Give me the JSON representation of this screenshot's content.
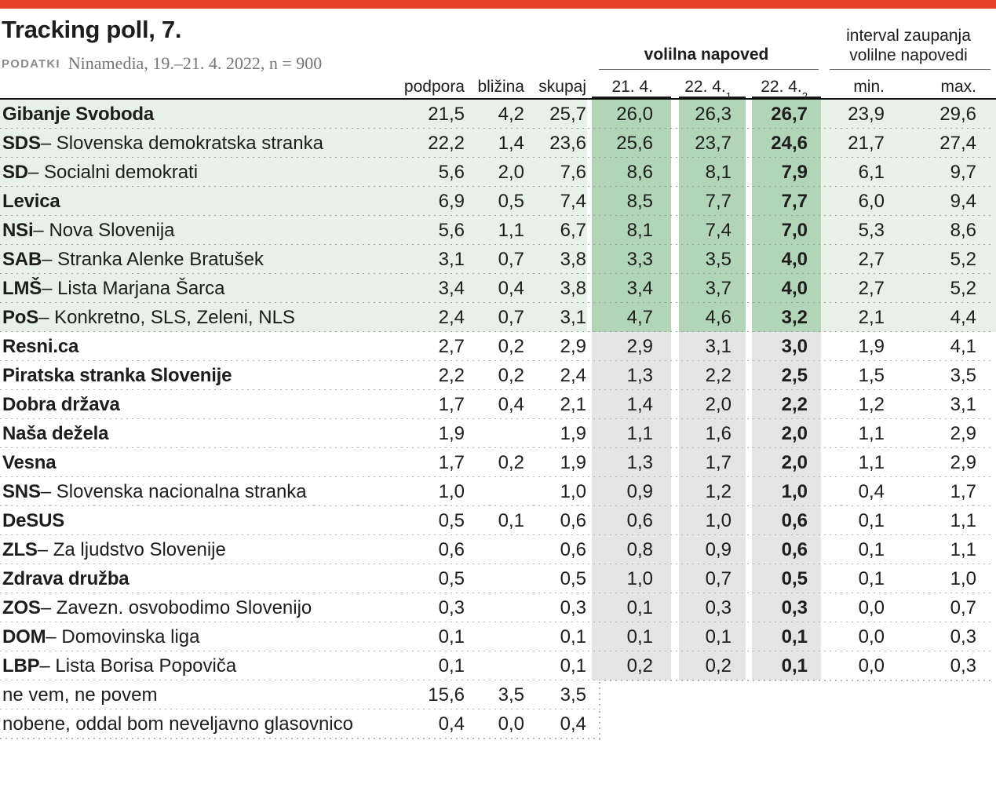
{
  "page": {
    "accent_red": "#e9402a",
    "title": "Tracking poll, 7.",
    "source_label": "PODATKI",
    "source_text": "Ninamedia, 19.–21. 4. 2022, n = 900"
  },
  "chart_data": {
    "type": "table",
    "title": "Tracking poll, 7.",
    "source": "Ninamedia, 19.–21. 4. 2022, n = 900",
    "group_headers": {
      "napoved": "volilna napoved",
      "interval_line1": "interval zaupanja",
      "interval_line2": "volilne napovedi"
    },
    "columns": [
      {
        "label": "podpora",
        "sup": ""
      },
      {
        "label": "bližina",
        "sup": ""
      },
      {
        "label": "skupaj",
        "sup": ""
      },
      {
        "label": "21. 4.",
        "sup": ""
      },
      {
        "label": "22. 4.",
        "sup": "1"
      },
      {
        "label": "22. 4.",
        "sup": "2"
      },
      {
        "label": "min.",
        "sup": ""
      },
      {
        "label": "max.",
        "sup": ""
      }
    ],
    "colors": {
      "row_green": "#e7f1e8",
      "band_green": "#b1d5b6",
      "band_gray": "#e4e4e4"
    },
    "rows": [
      {
        "party": "Gibanje Svoboda",
        "desc": "",
        "section": "green",
        "values": [
          "21,5",
          "4,2",
          "25,7",
          "26,0",
          "26,3",
          "26,7",
          "23,9",
          "29,6"
        ]
      },
      {
        "party": "SDS",
        "desc": "Slovenska demokratska stranka",
        "section": "green",
        "values": [
          "22,2",
          "1,4",
          "23,6",
          "25,6",
          "23,7",
          "24,6",
          "21,7",
          "27,4"
        ]
      },
      {
        "party": "SD",
        "desc": "Socialni demokrati",
        "section": "green",
        "values": [
          "5,6",
          "2,0",
          "7,6",
          "8,6",
          "8,1",
          "7,9",
          "6,1",
          "9,7"
        ]
      },
      {
        "party": "Levica",
        "desc": "",
        "section": "green",
        "values": [
          "6,9",
          "0,5",
          "7,4",
          "8,5",
          "7,7",
          "7,7",
          "6,0",
          "9,4"
        ]
      },
      {
        "party": "NSi",
        "desc": "Nova Slovenija",
        "section": "green",
        "values": [
          "5,6",
          "1,1",
          "6,7",
          "8,1",
          "7,4",
          "7,0",
          "5,3",
          "8,6"
        ]
      },
      {
        "party": "SAB",
        "desc": "Stranka Alenke Bratušek",
        "section": "green",
        "values": [
          "3,1",
          "0,7",
          "3,8",
          "3,3",
          "3,5",
          "4,0",
          "2,7",
          "5,2"
        ]
      },
      {
        "party": "LMŠ",
        "desc": "Lista Marjana Šarca",
        "section": "green",
        "values": [
          "3,4",
          "0,4",
          "3,8",
          "3,4",
          "3,7",
          "4,0",
          "2,7",
          "5,2"
        ]
      },
      {
        "party": "PoS",
        "desc": "Konkretno, SLS, Zeleni, NLS",
        "section": "green",
        "values": [
          "2,4",
          "0,7",
          "3,1",
          "4,7",
          "4,6",
          "3,2",
          "2,1",
          "4,4"
        ]
      },
      {
        "party": "Resni.ca",
        "desc": "",
        "section": "white",
        "values": [
          "2,7",
          "0,2",
          "2,9",
          "2,9",
          "3,1",
          "3,0",
          "1,9",
          "4,1"
        ]
      },
      {
        "party": "Piratska stranka Slovenije",
        "desc": "",
        "section": "white",
        "values": [
          "2,2",
          "0,2",
          "2,4",
          "1,3",
          "2,2",
          "2,5",
          "1,5",
          "3,5"
        ]
      },
      {
        "party": "Dobra država",
        "desc": "",
        "section": "white",
        "values": [
          "1,7",
          "0,4",
          "2,1",
          "1,4",
          "2,0",
          "2,2",
          "1,2",
          "3,1"
        ]
      },
      {
        "party": "Naša dežela",
        "desc": "",
        "section": "white",
        "values": [
          "1,9",
          "",
          "1,9",
          "1,1",
          "1,6",
          "2,0",
          "1,1",
          "2,9"
        ]
      },
      {
        "party": "Vesna",
        "desc": "",
        "section": "white",
        "values": [
          "1,7",
          "0,2",
          "1,9",
          "1,3",
          "1,7",
          "2,0",
          "1,1",
          "2,9"
        ]
      },
      {
        "party": "SNS",
        "desc": "Slovenska nacionalna stranka",
        "section": "white",
        "values": [
          "1,0",
          "",
          "1,0",
          "0,9",
          "1,2",
          "1,0",
          "0,4",
          "1,7"
        ]
      },
      {
        "party": "DeSUS",
        "desc": "",
        "section": "white",
        "values": [
          "0,5",
          "0,1",
          "0,6",
          "0,6",
          "1,0",
          "0,6",
          "0,1",
          "1,1"
        ]
      },
      {
        "party": "ZLS",
        "desc": "Za ljudstvo Slovenije",
        "section": "white",
        "values": [
          "0,6",
          "",
          "0,6",
          "0,8",
          "0,9",
          "0,6",
          "0,1",
          "1,1"
        ]
      },
      {
        "party": "Zdrava družba",
        "desc": "",
        "section": "white",
        "values": [
          "0,5",
          "",
          "0,5",
          "1,0",
          "0,7",
          "0,5",
          "0,1",
          "1,0"
        ]
      },
      {
        "party": "ZOS",
        "desc": "Zavezn. osvobodimo Slovenijo",
        "section": "white",
        "values": [
          "0,3",
          "",
          "0,3",
          "0,1",
          "0,3",
          "0,3",
          "0,0",
          "0,7"
        ]
      },
      {
        "party": "DOM",
        "desc": "Domovinska liga",
        "section": "white",
        "values": [
          "0,1",
          "",
          "0,1",
          "0,1",
          "0,1",
          "0,1",
          "0,0",
          "0,3"
        ]
      },
      {
        "party": "LBP",
        "desc": "Lista Borisa Popoviča",
        "section": "white",
        "values": [
          "0,1",
          "",
          "0,1",
          "0,2",
          "0,2",
          "0,1",
          "0,0",
          "0,3"
        ]
      }
    ],
    "footer_rows": [
      {
        "label": "ne vem, ne povem",
        "values": [
          "15,6",
          "3,5",
          "3,5"
        ]
      },
      {
        "label": "nobene, oddal bom neveljavno glasovnico",
        "values": [
          "0,4",
          "0,0",
          "0,4"
        ]
      }
    ]
  }
}
